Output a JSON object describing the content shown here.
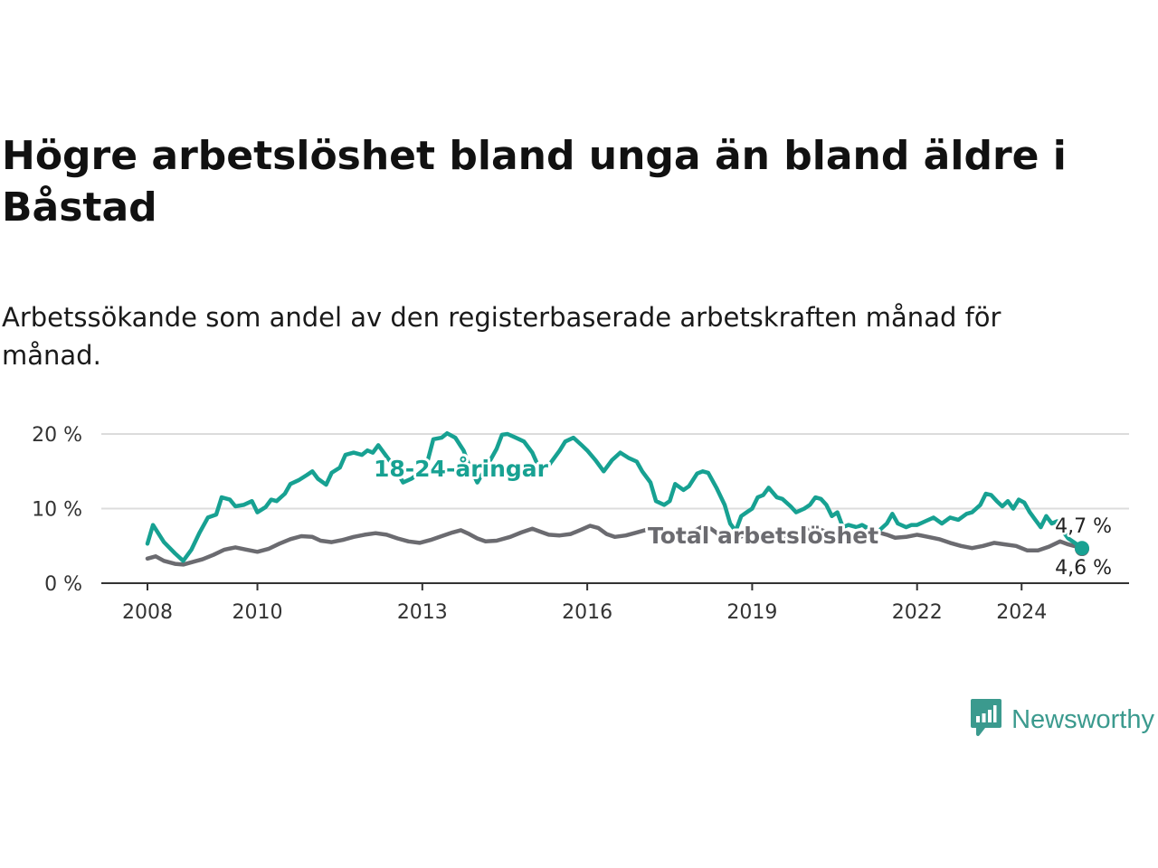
{
  "header": {
    "title": "Högre arbetslöshet bland unga än bland äldre i Båstad",
    "subtitle": "Arbetssökande som andel av den registerbaserade arbetskraften månad för månad."
  },
  "brand": {
    "name": "Newsworthy",
    "color": "#3b9a8e",
    "icon": "newsworthy-bar-chart-icon"
  },
  "chart_data": {
    "type": "line",
    "title": "Högre arbetslöshet bland unga än bland äldre i Båstad",
    "subtitle": "Arbetssökande som andel av den registerbaserade arbetskraften månad för månad.",
    "xlabel": "",
    "ylabel": "",
    "xlim": [
      2008,
      2025
    ],
    "ylim": [
      0,
      20
    ],
    "x_ticks": [
      2008,
      2010,
      2013,
      2016,
      2019,
      2022,
      2024
    ],
    "x_tick_labels": [
      "2008",
      "2010",
      "2013",
      "2016",
      "2019",
      "2022",
      "2024"
    ],
    "y_ticks": [
      0,
      10,
      20
    ],
    "y_tick_labels": [
      "0 %",
      "10 %",
      "20 %"
    ],
    "grid": true,
    "series": [
      {
        "name": "18-24-åringar",
        "label": "18-24-åringar",
        "color": "#17a192",
        "end_label": "4,7 %",
        "points": [
          [
            2008.0,
            5.3
          ],
          [
            2008.1,
            7.8
          ],
          [
            2008.3,
            5.5
          ],
          [
            2008.5,
            4.0
          ],
          [
            2008.65,
            3.0
          ],
          [
            2008.8,
            4.5
          ],
          [
            2008.95,
            6.8
          ],
          [
            2009.1,
            8.8
          ],
          [
            2009.25,
            9.2
          ],
          [
            2009.35,
            11.5
          ],
          [
            2009.5,
            11.2
          ],
          [
            2009.6,
            10.3
          ],
          [
            2009.75,
            10.5
          ],
          [
            2009.9,
            11.0
          ],
          [
            2010.0,
            9.5
          ],
          [
            2010.15,
            10.2
          ],
          [
            2010.25,
            11.2
          ],
          [
            2010.35,
            11.0
          ],
          [
            2010.5,
            12.0
          ],
          [
            2010.6,
            13.3
          ],
          [
            2010.75,
            13.8
          ],
          [
            2010.9,
            14.5
          ],
          [
            2011.0,
            15.0
          ],
          [
            2011.1,
            14.0
          ],
          [
            2011.25,
            13.2
          ],
          [
            2011.35,
            14.8
          ],
          [
            2011.5,
            15.5
          ],
          [
            2011.6,
            17.2
          ],
          [
            2011.75,
            17.5
          ],
          [
            2011.9,
            17.2
          ],
          [
            2012.0,
            17.8
          ],
          [
            2012.1,
            17.5
          ],
          [
            2012.2,
            18.5
          ],
          [
            2012.35,
            17.0
          ],
          [
            2012.5,
            15.5
          ],
          [
            2012.65,
            13.5
          ],
          [
            2012.8,
            14.0
          ],
          [
            2012.9,
            14.5
          ],
          [
            2013.0,
            15.5
          ],
          [
            2013.1,
            16.5
          ],
          [
            2013.2,
            19.3
          ],
          [
            2013.35,
            19.5
          ],
          [
            2013.45,
            20.1
          ],
          [
            2013.6,
            19.5
          ],
          [
            2013.75,
            17.8
          ],
          [
            2013.85,
            15.8
          ],
          [
            2014.0,
            13.5
          ],
          [
            2014.2,
            16.0
          ],
          [
            2014.35,
            18.0
          ],
          [
            2014.45,
            19.9
          ],
          [
            2014.55,
            20.0
          ],
          [
            2014.7,
            19.5
          ],
          [
            2014.85,
            19.0
          ],
          [
            2015.0,
            17.5
          ],
          [
            2015.15,
            15.0
          ],
          [
            2015.3,
            15.8
          ],
          [
            2015.5,
            17.8
          ],
          [
            2015.6,
            19.0
          ],
          [
            2015.75,
            19.5
          ],
          [
            2015.9,
            18.5
          ],
          [
            2016.0,
            17.8
          ],
          [
            2016.15,
            16.5
          ],
          [
            2016.3,
            15.0
          ],
          [
            2016.45,
            16.5
          ],
          [
            2016.6,
            17.5
          ],
          [
            2016.75,
            16.8
          ],
          [
            2016.9,
            16.3
          ],
          [
            2017.0,
            15.0
          ],
          [
            2017.15,
            13.5
          ],
          [
            2017.25,
            11.0
          ],
          [
            2017.4,
            10.5
          ],
          [
            2017.5,
            11.0
          ],
          [
            2017.6,
            13.3
          ],
          [
            2017.75,
            12.5
          ],
          [
            2017.85,
            13.0
          ],
          [
            2018.0,
            14.7
          ],
          [
            2018.1,
            15.0
          ],
          [
            2018.2,
            14.8
          ],
          [
            2018.35,
            12.8
          ],
          [
            2018.5,
            10.5
          ],
          [
            2018.6,
            8.0
          ],
          [
            2018.7,
            7.0
          ],
          [
            2018.8,
            9.0
          ],
          [
            2018.9,
            9.5
          ],
          [
            2019.0,
            10.0
          ],
          [
            2019.1,
            11.5
          ],
          [
            2019.2,
            11.8
          ],
          [
            2019.3,
            12.8
          ],
          [
            2019.45,
            11.5
          ],
          [
            2019.55,
            11.3
          ],
          [
            2019.7,
            10.3
          ],
          [
            2019.8,
            9.5
          ],
          [
            2019.95,
            10.0
          ],
          [
            2020.05,
            10.5
          ],
          [
            2020.15,
            11.5
          ],
          [
            2020.25,
            11.3
          ],
          [
            2020.35,
            10.5
          ],
          [
            2020.45,
            9.0
          ],
          [
            2020.55,
            9.5
          ],
          [
            2020.65,
            7.5
          ],
          [
            2020.75,
            7.8
          ],
          [
            2020.9,
            7.5
          ],
          [
            2021.0,
            7.8
          ],
          [
            2021.15,
            7.2
          ],
          [
            2021.3,
            7.0
          ],
          [
            2021.45,
            8.0
          ],
          [
            2021.55,
            9.3
          ],
          [
            2021.65,
            8.0
          ],
          [
            2021.8,
            7.5
          ],
          [
            2021.9,
            7.8
          ],
          [
            2022.0,
            7.8
          ],
          [
            2022.15,
            8.3
          ],
          [
            2022.3,
            8.8
          ],
          [
            2022.45,
            8.0
          ],
          [
            2022.6,
            8.8
          ],
          [
            2022.75,
            8.5
          ],
          [
            2022.9,
            9.3
          ],
          [
            2023.0,
            9.5
          ],
          [
            2023.15,
            10.5
          ],
          [
            2023.25,
            12.0
          ],
          [
            2023.35,
            11.8
          ],
          [
            2023.45,
            11.0
          ],
          [
            2023.55,
            10.3
          ],
          [
            2023.65,
            11.0
          ],
          [
            2023.75,
            10.0
          ],
          [
            2023.85,
            11.2
          ],
          [
            2023.95,
            10.8
          ],
          [
            2024.05,
            9.5
          ],
          [
            2024.15,
            8.5
          ],
          [
            2024.25,
            7.5
          ],
          [
            2024.35,
            9.0
          ],
          [
            2024.45,
            8.0
          ],
          [
            2024.55,
            8.3
          ],
          [
            2024.65,
            7.0
          ],
          [
            2024.75,
            6.0
          ],
          [
            2024.85,
            5.5
          ],
          [
            2024.95,
            5.0
          ],
          [
            2025.0,
            4.7
          ]
        ]
      },
      {
        "name": "Total arbetslöshet",
        "label": "Total arbetslöshet",
        "color": "#6b6b70",
        "end_label": "4,6 %",
        "points": [
          [
            2008.0,
            3.3
          ],
          [
            2008.15,
            3.6
          ],
          [
            2008.3,
            3.0
          ],
          [
            2008.5,
            2.6
          ],
          [
            2008.65,
            2.5
          ],
          [
            2008.85,
            2.9
          ],
          [
            2009.0,
            3.2
          ],
          [
            2009.2,
            3.8
          ],
          [
            2009.4,
            4.5
          ],
          [
            2009.6,
            4.8
          ],
          [
            2009.8,
            4.5
          ],
          [
            2010.0,
            4.2
          ],
          [
            2010.2,
            4.6
          ],
          [
            2010.4,
            5.3
          ],
          [
            2010.6,
            5.9
          ],
          [
            2010.8,
            6.3
          ],
          [
            2011.0,
            6.2
          ],
          [
            2011.15,
            5.7
          ],
          [
            2011.35,
            5.5
          ],
          [
            2011.55,
            5.8
          ],
          [
            2011.75,
            6.2
          ],
          [
            2011.95,
            6.5
          ],
          [
            2012.15,
            6.7
          ],
          [
            2012.35,
            6.5
          ],
          [
            2012.55,
            6.0
          ],
          [
            2012.75,
            5.6
          ],
          [
            2012.95,
            5.4
          ],
          [
            2013.15,
            5.8
          ],
          [
            2013.35,
            6.3
          ],
          [
            2013.55,
            6.8
          ],
          [
            2013.7,
            7.1
          ],
          [
            2013.85,
            6.6
          ],
          [
            2014.0,
            6.0
          ],
          [
            2014.15,
            5.6
          ],
          [
            2014.35,
            5.7
          ],
          [
            2014.6,
            6.2
          ],
          [
            2014.8,
            6.8
          ],
          [
            2015.0,
            7.3
          ],
          [
            2015.15,
            6.9
          ],
          [
            2015.3,
            6.5
          ],
          [
            2015.5,
            6.4
          ],
          [
            2015.7,
            6.6
          ],
          [
            2015.9,
            7.2
          ],
          [
            2016.05,
            7.7
          ],
          [
            2016.2,
            7.4
          ],
          [
            2016.35,
            6.6
          ],
          [
            2016.5,
            6.2
          ],
          [
            2016.7,
            6.4
          ],
          [
            2016.9,
            6.8
          ],
          [
            2017.1,
            7.2
          ],
          [
            2017.25,
            6.7
          ],
          [
            2017.4,
            6.0
          ],
          [
            2017.55,
            5.9
          ],
          [
            2017.75,
            6.4
          ],
          [
            2017.95,
            7.0
          ],
          [
            2018.1,
            7.6
          ],
          [
            2018.25,
            7.3
          ],
          [
            2018.4,
            6.5
          ],
          [
            2018.55,
            5.9
          ],
          [
            2018.7,
            5.9
          ],
          [
            2018.9,
            6.6
          ],
          [
            2019.05,
            7.0
          ],
          [
            2019.2,
            6.5
          ],
          [
            2019.4,
            6.1
          ],
          [
            2019.55,
            6.3
          ],
          [
            2019.75,
            6.6
          ],
          [
            2019.95,
            7.0
          ],
          [
            2020.15,
            7.4
          ],
          [
            2020.35,
            6.9
          ],
          [
            2020.5,
            6.5
          ],
          [
            2020.65,
            6.3
          ],
          [
            2020.85,
            6.7
          ],
          [
            2021.05,
            7.1
          ],
          [
            2021.25,
            6.9
          ],
          [
            2021.45,
            6.5
          ],
          [
            2021.6,
            6.1
          ],
          [
            2021.8,
            6.2
          ],
          [
            2022.0,
            6.5
          ],
          [
            2022.2,
            6.2
          ],
          [
            2022.4,
            5.9
          ],
          [
            2022.6,
            5.4
          ],
          [
            2022.8,
            5.0
          ],
          [
            2023.0,
            4.7
          ],
          [
            2023.2,
            5.0
          ],
          [
            2023.4,
            5.4
          ],
          [
            2023.6,
            5.2
          ],
          [
            2023.8,
            5.0
          ],
          [
            2024.0,
            4.4
          ],
          [
            2024.2,
            4.4
          ],
          [
            2024.4,
            4.9
          ],
          [
            2024.6,
            5.6
          ],
          [
            2024.75,
            5.2
          ],
          [
            2024.9,
            4.9
          ],
          [
            2025.0,
            4.6
          ]
        ]
      }
    ]
  }
}
